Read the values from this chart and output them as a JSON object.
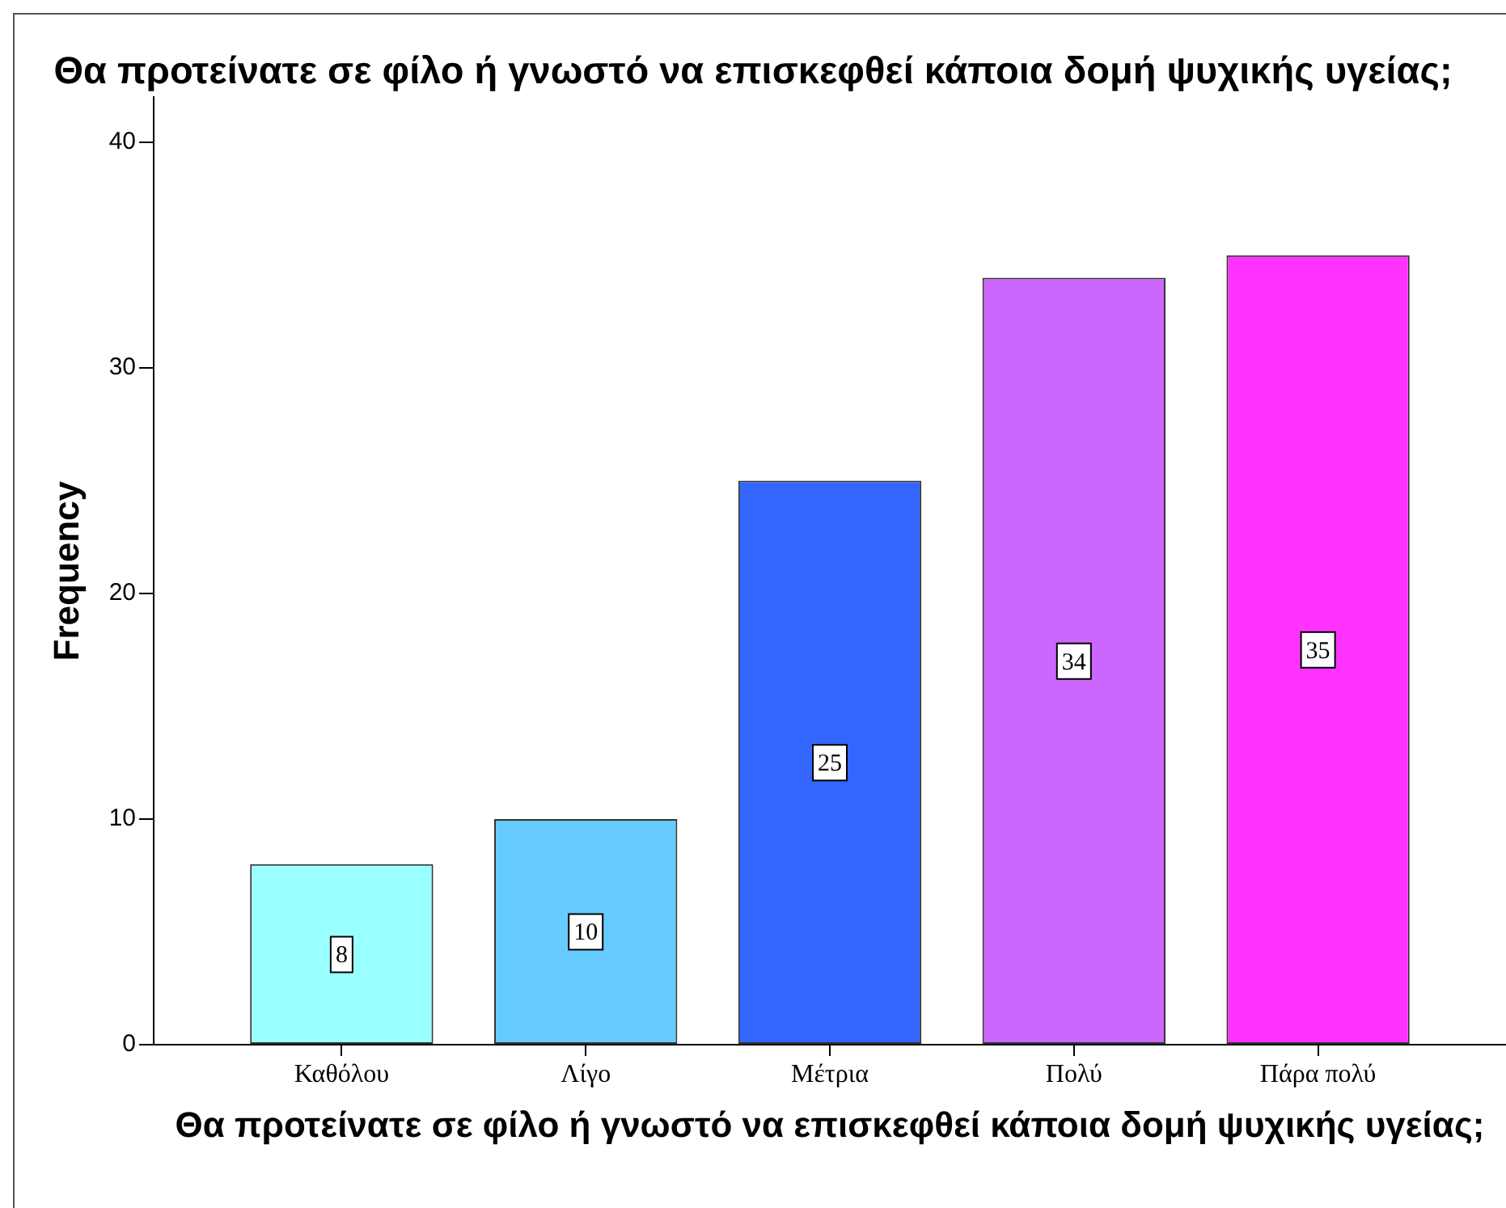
{
  "chart_data": {
    "type": "bar",
    "title": "Θα προτείνατε σε φίλο ή γνωστό να επισκεφθεί κάποια δομή ψυχικής υγείας;",
    "xlabel": "Θα προτείνατε σε φίλο ή γνωστό να επισκεφθεί κάποια δομή ψυχικής υγείας;",
    "ylabel": "Frequency",
    "categories": [
      "Καθόλου",
      "Λίγο",
      "Μέτρια",
      "Πολύ",
      "Πάρα πολύ"
    ],
    "values": [
      8,
      10,
      25,
      34,
      35
    ],
    "colors": [
      "#99ffff",
      "#66ccff",
      "#3366ff",
      "#cc66ff",
      "#ff33ff"
    ],
    "ylim": [
      0,
      42
    ],
    "yticks": [
      0,
      10,
      20,
      30,
      40
    ],
    "grid": false,
    "legend": false,
    "data_labels": true
  }
}
